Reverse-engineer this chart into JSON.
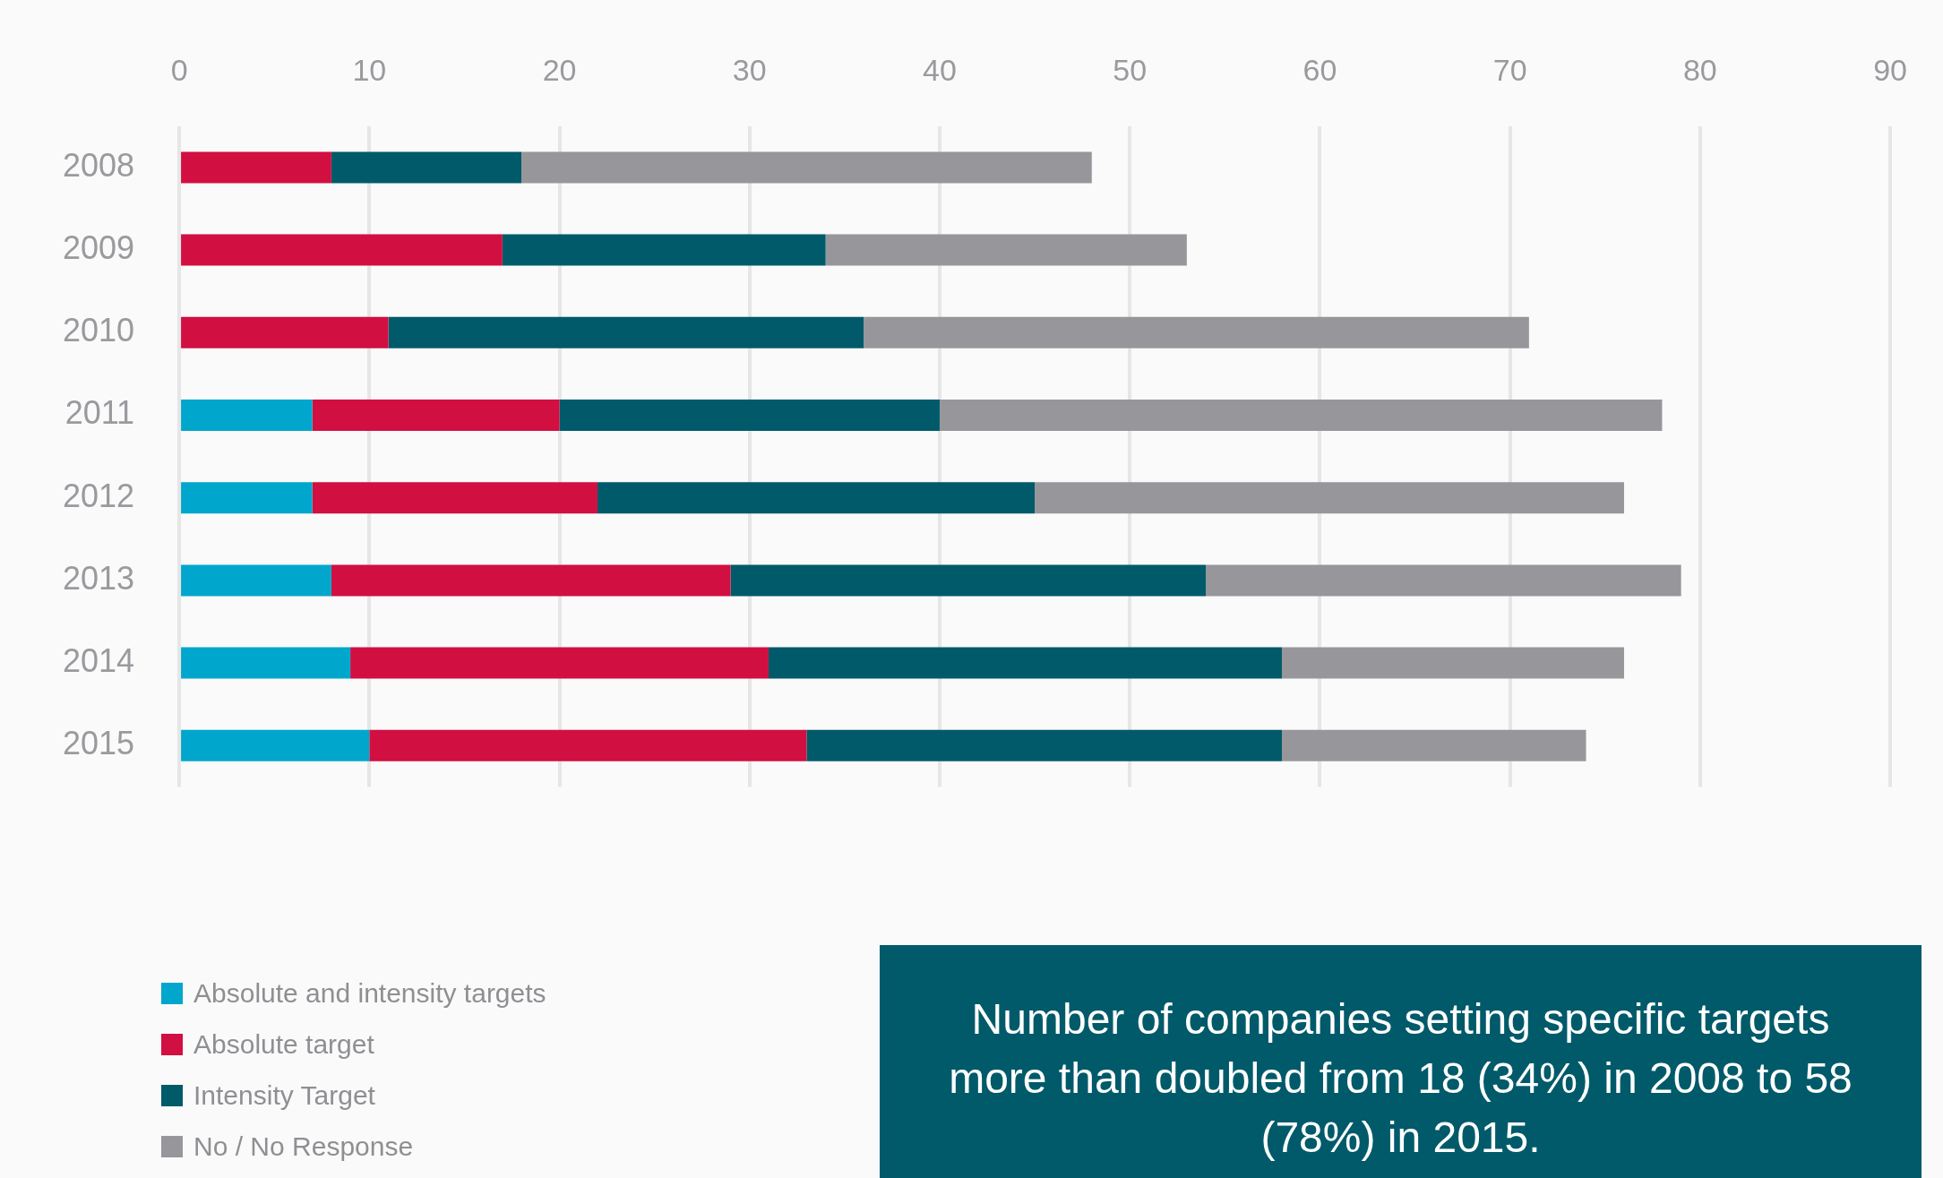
{
  "chart_data": {
    "type": "bar",
    "orientation": "horizontal",
    "stacked": true,
    "categories": [
      "2008",
      "2009",
      "2010",
      "2011",
      "2012",
      "2013",
      "2014",
      "2015"
    ],
    "series": [
      {
        "name": "Absolute and intensity targets",
        "color": "#00a6cc",
        "values": [
          null,
          null,
          null,
          7,
          7,
          8,
          9,
          10
        ]
      },
      {
        "name": "Absolute target",
        "color": "#d10f41",
        "values": [
          8,
          17,
          11,
          13,
          15,
          21,
          22,
          23
        ]
      },
      {
        "name": "Intensity Target",
        "color": "#005a6a",
        "values": [
          10,
          17,
          25,
          20,
          23,
          25,
          27,
          25
        ]
      },
      {
        "name": "No / No Response",
        "color": "#97979b",
        "values": [
          30,
          19,
          35,
          38,
          31,
          25,
          18,
          16
        ]
      }
    ],
    "xlim": [
      0,
      90
    ],
    "xticks": [
      0,
      10,
      20,
      30,
      40,
      50,
      60,
      70,
      80,
      90
    ],
    "grid": "x",
    "legend": "bottom left",
    "annotations": [
      "Number of companies setting specific targets more than doubled from 18 (34%) in 2008 to 58 (78%) in 2015."
    ]
  }
}
